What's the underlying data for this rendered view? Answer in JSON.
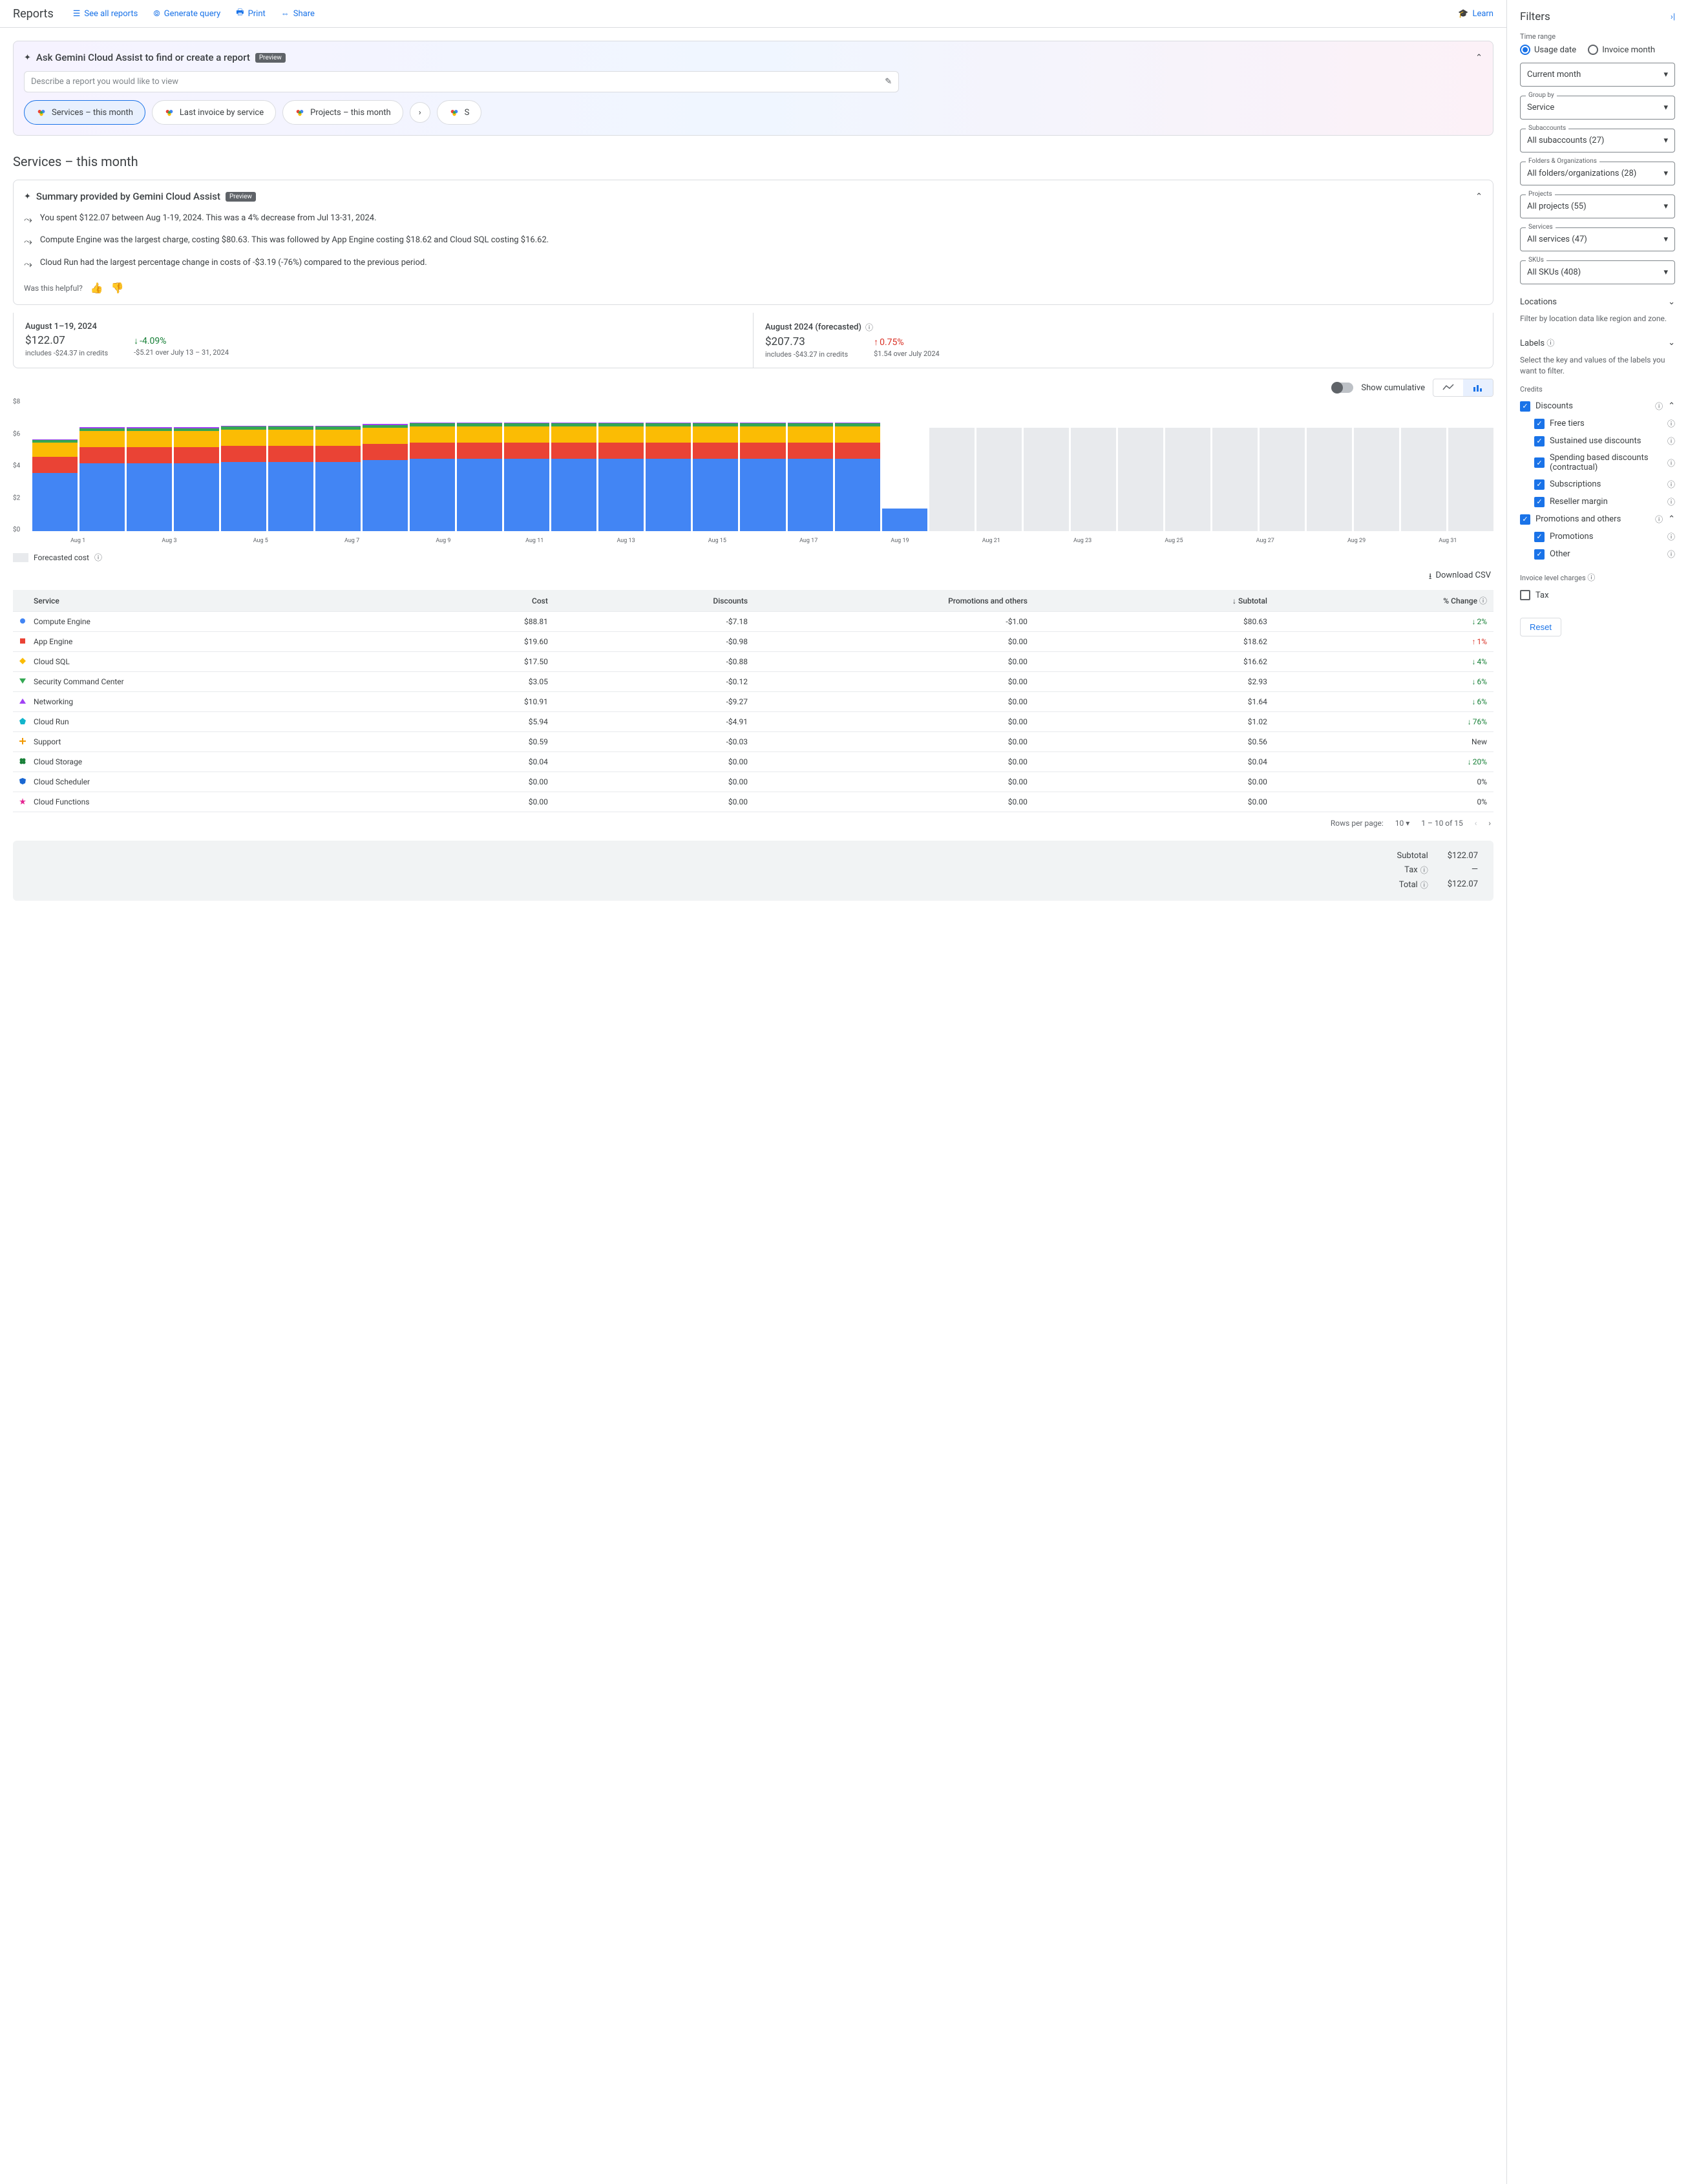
{
  "header": {
    "title": "Reports",
    "links": {
      "see_all": "See all reports",
      "generate": "Generate query",
      "print": "Print",
      "share": "Share",
      "learn": "Learn"
    }
  },
  "gemini": {
    "title": "Ask Gemini Cloud Assist to find or create a report",
    "preview": "Preview",
    "placeholder": "Describe a report you would like to view",
    "chips": [
      "Services – this month",
      "Last invoice by service",
      "Projects – this month"
    ]
  },
  "page_title": "Services – this month",
  "summary": {
    "title": "Summary provided by Gemini Cloud Assist",
    "preview": "Preview",
    "bullets": [
      "You spent $122.07 between Aug 1-19, 2024. This was a 4% decrease from Jul 13-31, 2024.",
      "Compute Engine was the largest charge, costing $80.63. This was followed by App Engine costing $18.62 and Cloud SQL costing $16.62.",
      "Cloud Run had the largest percentage change in costs of -$3.19 (-76%) compared to the previous period."
    ],
    "helpful": "Was this helpful?"
  },
  "stats": {
    "left": {
      "title": "August 1–19, 2024",
      "value": "$122.07",
      "sub": "includes -$24.37 in credits",
      "pct": "-4.09%",
      "pct_sub": "-$5.21 over July 13 – 31, 2024"
    },
    "right": {
      "title": "August 2024 (forecasted)",
      "value": "$207.73",
      "sub": "includes -$43.27 in credits",
      "pct": "0.75%",
      "pct_sub": "$1.54 over July 2024"
    }
  },
  "chart": {
    "cumulative_label": "Show cumulative",
    "y_ticks": [
      "$8",
      "$6",
      "$4",
      "$2",
      "$0"
    ],
    "y_max": 8,
    "x_labels": [
      "Aug 1",
      "Aug 3",
      "Aug 5",
      "Aug 7",
      "Aug 9",
      "Aug 11",
      "Aug 13",
      "Aug 15",
      "Aug 17",
      "Aug 19",
      "Aug 21",
      "Aug 23",
      "Aug 25",
      "Aug 27",
      "Aug 29",
      "Aug 31"
    ],
    "colors": {
      "compute": "#4285f4",
      "appengine": "#ea4335",
      "sql": "#fbbc04",
      "security": "#34a853",
      "other": "#a142f4",
      "forecast": "#e8eaed"
    },
    "bars": [
      {
        "segments": [
          3.6,
          1.0,
          0.9,
          0.15,
          0.05
        ]
      },
      {
        "segments": [
          4.2,
          1.0,
          1.0,
          0.18,
          0.05
        ]
      },
      {
        "segments": [
          4.2,
          1.0,
          1.0,
          0.18,
          0.05
        ]
      },
      {
        "segments": [
          4.2,
          1.0,
          1.0,
          0.18,
          0.05
        ]
      },
      {
        "segments": [
          4.3,
          1.0,
          1.0,
          0.18,
          0.05
        ]
      },
      {
        "segments": [
          4.3,
          1.0,
          1.0,
          0.18,
          0.05
        ]
      },
      {
        "segments": [
          4.3,
          1.0,
          1.0,
          0.18,
          0.05
        ]
      },
      {
        "segments": [
          4.4,
          1.0,
          1.0,
          0.18,
          0.05
        ]
      },
      {
        "segments": [
          4.5,
          1.0,
          1.0,
          0.19,
          0.05
        ]
      },
      {
        "segments": [
          4.5,
          1.0,
          1.0,
          0.19,
          0.05
        ]
      },
      {
        "segments": [
          4.5,
          1.0,
          1.0,
          0.19,
          0.05
        ]
      },
      {
        "segments": [
          4.5,
          1.0,
          1.0,
          0.19,
          0.05
        ]
      },
      {
        "segments": [
          4.5,
          1.0,
          1.0,
          0.19,
          0.05
        ]
      },
      {
        "segments": [
          4.5,
          1.0,
          1.0,
          0.19,
          0.05
        ]
      },
      {
        "segments": [
          4.5,
          1.0,
          1.0,
          0.19,
          0.05
        ]
      },
      {
        "segments": [
          4.5,
          1.0,
          1.0,
          0.19,
          0.05
        ]
      },
      {
        "segments": [
          4.5,
          1.0,
          1.0,
          0.19,
          0.05
        ]
      },
      {
        "segments": [
          4.5,
          1.0,
          1.0,
          0.19,
          0.05
        ]
      },
      {
        "segments": [
          1.4,
          0.0,
          0.0,
          0.0,
          0.0
        ]
      }
    ],
    "forecast_bars": 12,
    "forecast_height": 6.4,
    "legend_forecast": "Forecasted cost"
  },
  "download": "Download CSV",
  "table": {
    "headers": {
      "service": "Service",
      "cost": "Cost",
      "discounts": "Discounts",
      "promo": "Promotions and others",
      "subtotal": "Subtotal",
      "change": "% Change"
    },
    "rows": [
      {
        "marker": "#4285f4",
        "shape": "circle",
        "service": "Compute Engine",
        "cost": "$88.81",
        "discounts": "-$7.18",
        "promo": "-$1.00",
        "subtotal": "$80.63",
        "change": "2%",
        "dir": "down"
      },
      {
        "marker": "#ea4335",
        "shape": "square",
        "service": "App Engine",
        "cost": "$19.60",
        "discounts": "-$0.98",
        "promo": "$0.00",
        "subtotal": "$18.62",
        "change": "1%",
        "dir": "up"
      },
      {
        "marker": "#fbbc04",
        "shape": "diamond",
        "service": "Cloud SQL",
        "cost": "$17.50",
        "discounts": "-$0.88",
        "promo": "$0.00",
        "subtotal": "$16.62",
        "change": "4%",
        "dir": "down"
      },
      {
        "marker": "#34a853",
        "shape": "triangle-down",
        "service": "Security Command Center",
        "cost": "$3.05",
        "discounts": "-$0.12",
        "promo": "$0.00",
        "subtotal": "$2.93",
        "change": "6%",
        "dir": "down"
      },
      {
        "marker": "#a142f4",
        "shape": "triangle-up",
        "service": "Networking",
        "cost": "$10.91",
        "discounts": "-$9.27",
        "promo": "$0.00",
        "subtotal": "$1.64",
        "change": "6%",
        "dir": "down"
      },
      {
        "marker": "#12b5cb",
        "shape": "pentagon",
        "service": "Cloud Run",
        "cost": "$5.94",
        "discounts": "-$4.91",
        "promo": "$0.00",
        "subtotal": "$1.02",
        "change": "76%",
        "dir": "down"
      },
      {
        "marker": "#f29900",
        "shape": "plus",
        "service": "Support",
        "cost": "$0.59",
        "discounts": "-$0.03",
        "promo": "$0.00",
        "subtotal": "$0.56",
        "change": "New",
        "dir": "neutral"
      },
      {
        "marker": "#188038",
        "shape": "clover",
        "service": "Cloud Storage",
        "cost": "$0.04",
        "discounts": "$0.00",
        "promo": "$0.00",
        "subtotal": "$0.04",
        "change": "20%",
        "dir": "down"
      },
      {
        "marker": "#1967d2",
        "shape": "shield",
        "service": "Cloud Scheduler",
        "cost": "$0.00",
        "discounts": "$0.00",
        "promo": "$0.00",
        "subtotal": "$0.00",
        "change": "0%",
        "dir": "neutral"
      },
      {
        "marker": "#e52592",
        "shape": "star",
        "service": "Cloud Functions",
        "cost": "$0.00",
        "discounts": "$0.00",
        "promo": "$0.00",
        "subtotal": "$0.00",
        "change": "0%",
        "dir": "neutral"
      }
    ]
  },
  "pager": {
    "rpp": "Rows per page:",
    "rpp_val": "10",
    "range": "1 – 10 of 15"
  },
  "totals": {
    "subtotal_lbl": "Subtotal",
    "subtotal": "$122.07",
    "tax_lbl": "Tax",
    "tax": "—",
    "total_lbl": "Total",
    "total": "$122.07"
  },
  "filters": {
    "title": "Filters",
    "time_range": "Time range",
    "usage_date": "Usage date",
    "invoice_month": "Invoice month",
    "current_month": "Current month",
    "group_by_lbl": "Group by",
    "group_by": "Service",
    "subaccounts_lbl": "Subaccounts",
    "subaccounts": "All subaccounts (27)",
    "folders_lbl": "Folders & Organizations",
    "folders": "All folders/organizations (28)",
    "projects_lbl": "Projects",
    "projects": "All projects (55)",
    "services_lbl": "Services",
    "services": "All services (47)",
    "skus_lbl": "SKUs",
    "skus": "All SKUs (408)",
    "locations": "Locations",
    "locations_desc": "Filter by location data like region and zone.",
    "labels": "Labels",
    "labels_desc": "Select the key and values of the labels you want to filter.",
    "credits": "Credits",
    "discounts": "Discounts",
    "free_tiers": "Free tiers",
    "sustained": "Sustained use discounts",
    "spending": "Spending based discounts (contractual)",
    "subscriptions": "Subscriptions",
    "reseller": "Reseller margin",
    "promotions_others": "Promotions and others",
    "promotions": "Promotions",
    "other": "Other",
    "invoice_level": "Invoice level charges",
    "tax": "Tax",
    "reset": "Reset"
  }
}
